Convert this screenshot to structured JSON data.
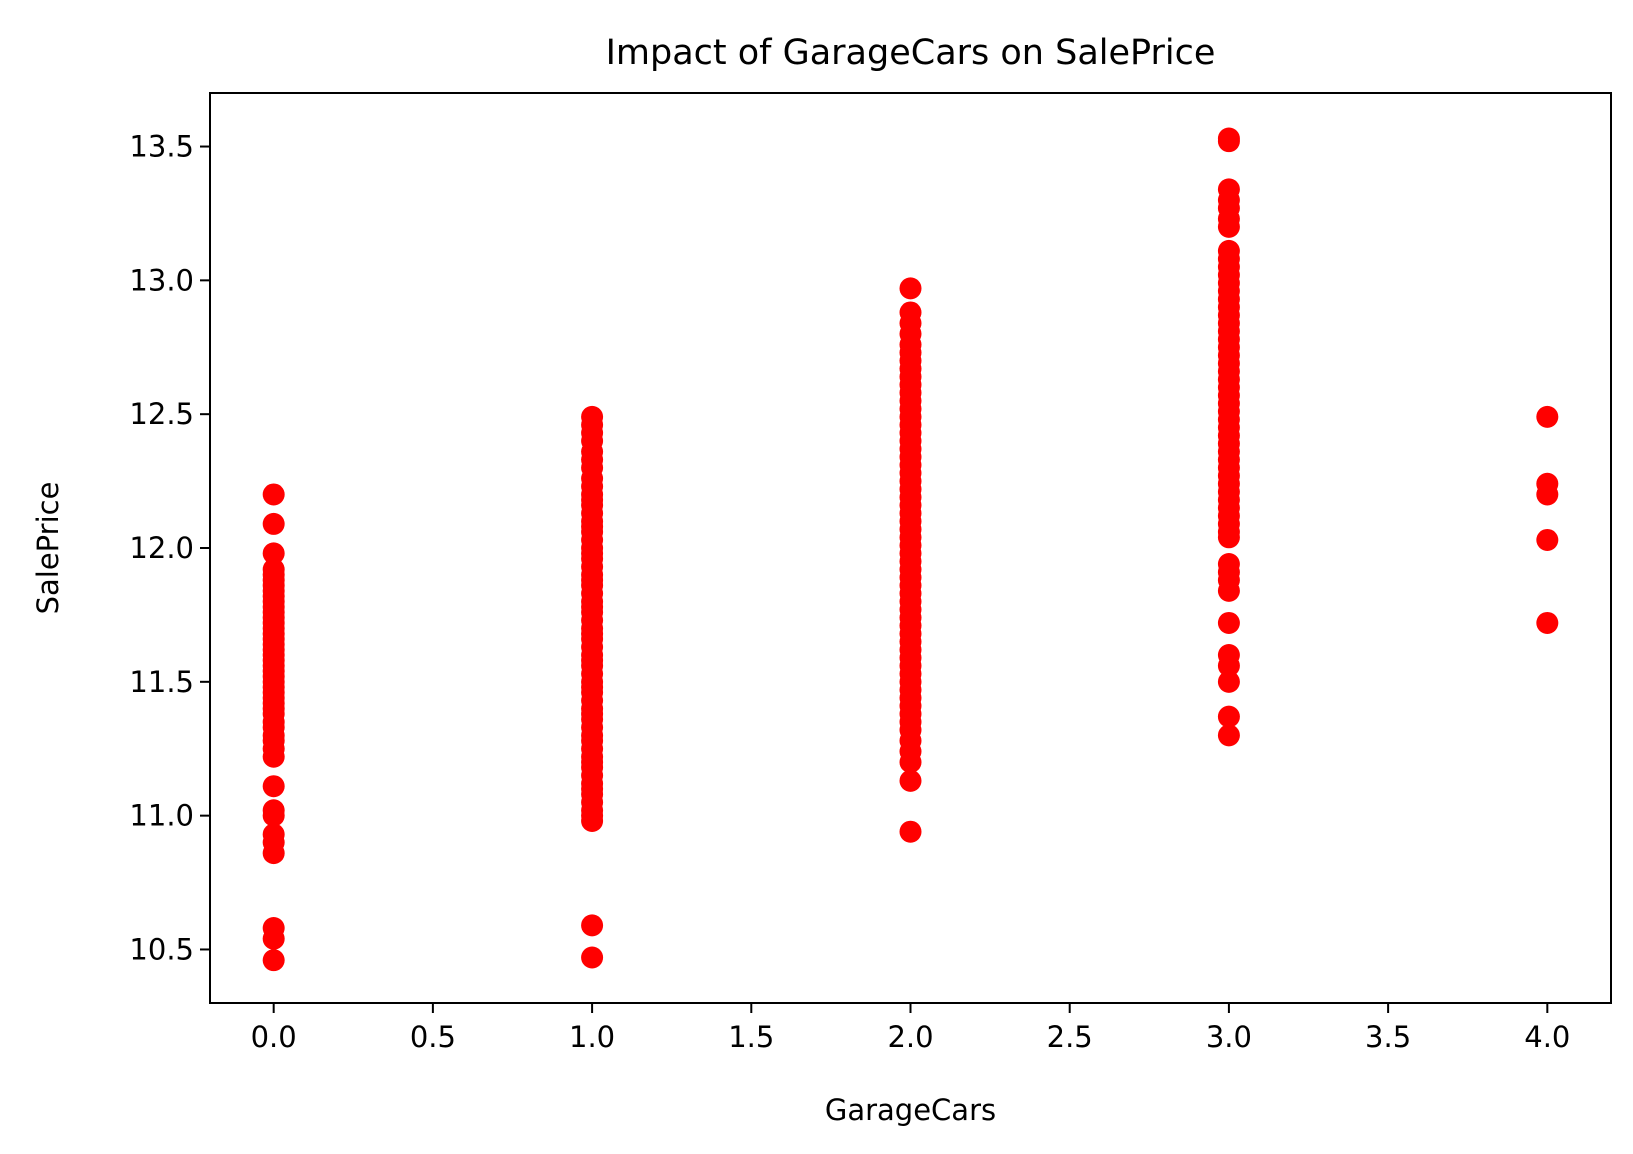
{
  "chart_data": {
    "type": "scatter",
    "title": "Impact of GarageCars on SalePrice",
    "xlabel": "GarageCars",
    "ylabel": "SalePrice",
    "xlim": [
      -0.2,
      4.2
    ],
    "ylim": [
      10.3,
      13.7
    ],
    "xticks": [
      0.0,
      0.5,
      1.0,
      1.5,
      2.0,
      2.5,
      3.0,
      3.5,
      4.0
    ],
    "xtick_labels": [
      "0.0",
      "0.5",
      "1.0",
      "1.5",
      "2.0",
      "2.5",
      "3.0",
      "3.5",
      "4.0"
    ],
    "yticks": [
      10.5,
      11.0,
      11.5,
      12.0,
      12.5,
      13.0,
      13.5
    ],
    "ytick_labels": [
      "10.5",
      "11.0",
      "11.5",
      "12.0",
      "12.5",
      "13.0",
      "13.5"
    ],
    "grid": false,
    "marker_color": "#ff0000",
    "series": [
      {
        "points": [
          [
            0,
            10.46
          ],
          [
            0,
            10.54
          ],
          [
            0,
            10.58
          ],
          [
            0,
            10.86
          ],
          [
            0,
            10.9
          ],
          [
            0,
            10.93
          ],
          [
            0,
            11.0
          ],
          [
            0,
            11.02
          ],
          [
            0,
            11.11
          ],
          [
            0,
            11.22
          ],
          [
            0,
            11.25
          ],
          [
            0,
            11.28
          ],
          [
            0,
            11.3
          ],
          [
            0,
            11.33
          ],
          [
            0,
            11.35
          ],
          [
            0,
            11.38
          ],
          [
            0,
            11.4
          ],
          [
            0,
            11.42
          ],
          [
            0,
            11.44
          ],
          [
            0,
            11.46
          ],
          [
            0,
            11.48
          ],
          [
            0,
            11.5
          ],
          [
            0,
            11.52
          ],
          [
            0,
            11.54
          ],
          [
            0,
            11.56
          ],
          [
            0,
            11.58
          ],
          [
            0,
            11.6
          ],
          [
            0,
            11.62
          ],
          [
            0,
            11.64
          ],
          [
            0,
            11.66
          ],
          [
            0,
            11.68
          ],
          [
            0,
            11.7
          ],
          [
            0,
            11.72
          ],
          [
            0,
            11.74
          ],
          [
            0,
            11.76
          ],
          [
            0,
            11.78
          ],
          [
            0,
            11.8
          ],
          [
            0,
            11.82
          ],
          [
            0,
            11.84
          ],
          [
            0,
            11.86
          ],
          [
            0,
            11.88
          ],
          [
            0,
            11.9
          ],
          [
            0,
            11.92
          ],
          [
            0,
            11.98
          ],
          [
            0,
            12.09
          ],
          [
            0,
            12.2
          ],
          [
            1,
            10.47
          ],
          [
            1,
            10.59
          ],
          [
            1,
            10.98
          ],
          [
            1,
            11.0
          ],
          [
            1,
            11.02
          ],
          [
            1,
            11.05
          ],
          [
            1,
            11.08
          ],
          [
            1,
            11.1
          ],
          [
            1,
            11.12
          ],
          [
            1,
            11.15
          ],
          [
            1,
            11.18
          ],
          [
            1,
            11.2
          ],
          [
            1,
            11.22
          ],
          [
            1,
            11.25
          ],
          [
            1,
            11.28
          ],
          [
            1,
            11.3
          ],
          [
            1,
            11.33
          ],
          [
            1,
            11.36
          ],
          [
            1,
            11.38
          ],
          [
            1,
            11.4
          ],
          [
            1,
            11.43
          ],
          [
            1,
            11.46
          ],
          [
            1,
            11.48
          ],
          [
            1,
            11.5
          ],
          [
            1,
            11.53
          ],
          [
            1,
            11.56
          ],
          [
            1,
            11.58
          ],
          [
            1,
            11.6
          ],
          [
            1,
            11.63
          ],
          [
            1,
            11.66
          ],
          [
            1,
            11.68
          ],
          [
            1,
            11.7
          ],
          [
            1,
            11.73
          ],
          [
            1,
            11.76
          ],
          [
            1,
            11.78
          ],
          [
            1,
            11.8
          ],
          [
            1,
            11.83
          ],
          [
            1,
            11.86
          ],
          [
            1,
            11.88
          ],
          [
            1,
            11.9
          ],
          [
            1,
            11.93
          ],
          [
            1,
            11.96
          ],
          [
            1,
            11.98
          ],
          [
            1,
            12.0
          ],
          [
            1,
            12.03
          ],
          [
            1,
            12.06
          ],
          [
            1,
            12.08
          ],
          [
            1,
            12.1
          ],
          [
            1,
            12.13
          ],
          [
            1,
            12.16
          ],
          [
            1,
            12.18
          ],
          [
            1,
            12.2
          ],
          [
            1,
            12.23
          ],
          [
            1,
            12.26
          ],
          [
            1,
            12.3
          ],
          [
            1,
            12.33
          ],
          [
            1,
            12.36
          ],
          [
            1,
            12.4
          ],
          [
            1,
            12.43
          ],
          [
            1,
            12.46
          ],
          [
            1,
            12.49
          ],
          [
            2,
            10.94
          ],
          [
            2,
            11.13
          ],
          [
            2,
            11.2
          ],
          [
            2,
            11.24
          ],
          [
            2,
            11.28
          ],
          [
            2,
            11.32
          ],
          [
            2,
            11.35
          ],
          [
            2,
            11.38
          ],
          [
            2,
            11.41
          ],
          [
            2,
            11.44
          ],
          [
            2,
            11.47
          ],
          [
            2,
            11.5
          ],
          [
            2,
            11.53
          ],
          [
            2,
            11.56
          ],
          [
            2,
            11.59
          ],
          [
            2,
            11.62
          ],
          [
            2,
            11.65
          ],
          [
            2,
            11.68
          ],
          [
            2,
            11.71
          ],
          [
            2,
            11.74
          ],
          [
            2,
            11.77
          ],
          [
            2,
            11.8
          ],
          [
            2,
            11.83
          ],
          [
            2,
            11.86
          ],
          [
            2,
            11.89
          ],
          [
            2,
            11.92
          ],
          [
            2,
            11.95
          ],
          [
            2,
            11.98
          ],
          [
            2,
            12.01
          ],
          [
            2,
            12.04
          ],
          [
            2,
            12.07
          ],
          [
            2,
            12.1
          ],
          [
            2,
            12.13
          ],
          [
            2,
            12.16
          ],
          [
            2,
            12.19
          ],
          [
            2,
            12.22
          ],
          [
            2,
            12.25
          ],
          [
            2,
            12.28
          ],
          [
            2,
            12.31
          ],
          [
            2,
            12.34
          ],
          [
            2,
            12.37
          ],
          [
            2,
            12.4
          ],
          [
            2,
            12.43
          ],
          [
            2,
            12.46
          ],
          [
            2,
            12.49
          ],
          [
            2,
            12.52
          ],
          [
            2,
            12.55
          ],
          [
            2,
            12.58
          ],
          [
            2,
            12.61
          ],
          [
            2,
            12.64
          ],
          [
            2,
            12.67
          ],
          [
            2,
            12.7
          ],
          [
            2,
            12.73
          ],
          [
            2,
            12.76
          ],
          [
            2,
            12.8
          ],
          [
            2,
            12.84
          ],
          [
            2,
            12.88
          ],
          [
            2,
            12.97
          ],
          [
            3,
            11.3
          ],
          [
            3,
            11.37
          ],
          [
            3,
            11.5
          ],
          [
            3,
            11.56
          ],
          [
            3,
            11.6
          ],
          [
            3,
            11.72
          ],
          [
            3,
            11.84
          ],
          [
            3,
            11.88
          ],
          [
            3,
            11.91
          ],
          [
            3,
            11.94
          ],
          [
            3,
            12.04
          ],
          [
            3,
            12.06
          ],
          [
            3,
            12.09
          ],
          [
            3,
            12.12
          ],
          [
            3,
            12.15
          ],
          [
            3,
            12.18
          ],
          [
            3,
            12.21
          ],
          [
            3,
            12.24
          ],
          [
            3,
            12.27
          ],
          [
            3,
            12.3
          ],
          [
            3,
            12.33
          ],
          [
            3,
            12.36
          ],
          [
            3,
            12.39
          ],
          [
            3,
            12.42
          ],
          [
            3,
            12.45
          ],
          [
            3,
            12.48
          ],
          [
            3,
            12.51
          ],
          [
            3,
            12.54
          ],
          [
            3,
            12.57
          ],
          [
            3,
            12.6
          ],
          [
            3,
            12.63
          ],
          [
            3,
            12.66
          ],
          [
            3,
            12.69
          ],
          [
            3,
            12.72
          ],
          [
            3,
            12.75
          ],
          [
            3,
            12.78
          ],
          [
            3,
            12.81
          ],
          [
            3,
            12.84
          ],
          [
            3,
            12.87
          ],
          [
            3,
            12.9
          ],
          [
            3,
            12.93
          ],
          [
            3,
            12.96
          ],
          [
            3,
            12.99
          ],
          [
            3,
            13.02
          ],
          [
            3,
            13.05
          ],
          [
            3,
            13.08
          ],
          [
            3,
            13.11
          ],
          [
            3,
            13.2
          ],
          [
            3,
            13.23
          ],
          [
            3,
            13.27
          ],
          [
            3,
            13.3
          ],
          [
            3,
            13.34
          ],
          [
            3,
            13.52
          ],
          [
            3,
            13.53
          ],
          [
            4,
            11.72
          ],
          [
            4,
            12.03
          ],
          [
            4,
            12.2
          ],
          [
            4,
            12.24
          ],
          [
            4,
            12.49
          ]
        ]
      }
    ]
  }
}
